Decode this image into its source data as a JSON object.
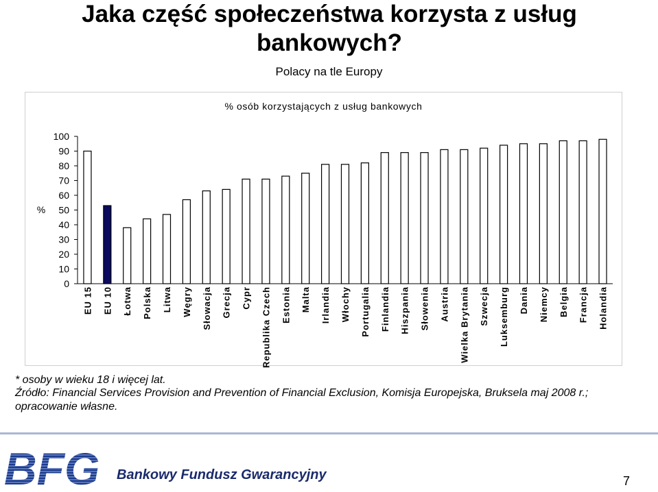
{
  "title": "Jaka część społeczeństwa korzysta z usług bankowych?",
  "subtitle": "Polacy na tle Europy",
  "footnote": "* osoby w wieku 18 i więcej lat.",
  "source": "Źródło: Financial Services Provision and Prevention of Financial Exclusion, Komisja Europejska, Bruksela maj 2008 r.; opracowanie własne.",
  "logo": {
    "text": "BFG"
  },
  "footer": {
    "fund_name": "Bankowy Fundusz Gwarancyjny",
    "page_number": "7"
  },
  "colors": {
    "bar": "#ffffff",
    "highlight": "#0a0a60",
    "stroke": "#000000",
    "logo": "#1a3a8c"
  },
  "chart_data": {
    "type": "bar",
    "title": "% osób korzystających z usług bankowych",
    "ylabel": "%",
    "xlabel": "",
    "ylim": [
      0,
      100
    ],
    "yticks": [
      0,
      10,
      20,
      30,
      40,
      50,
      60,
      70,
      80,
      90,
      100
    ],
    "grid": false,
    "categories": [
      "EU 15",
      "EU 10",
      "Łotwa",
      "Polska",
      "Litwa",
      "Węgry",
      "Słowacja",
      "Grecja",
      "Cypr",
      "Republika Czech",
      "Estonia",
      "Malta",
      "Irlandia",
      "Włochy",
      "Portugalia",
      "Finlandia",
      "Hiszpania",
      "Słowenia",
      "Austria",
      "Wielka Brytania",
      "Szwecja",
      "Luksemburg",
      "Dania",
      "Niemcy",
      "Belgia",
      "Francja",
      "Holandia"
    ],
    "values": [
      90,
      53,
      38,
      44,
      47,
      57,
      63,
      64,
      71,
      71,
      73,
      75,
      81,
      81,
      82,
      89,
      89,
      89,
      91,
      91,
      92,
      94,
      95,
      95,
      97,
      97,
      98
    ],
    "highlight_index": 1
  }
}
